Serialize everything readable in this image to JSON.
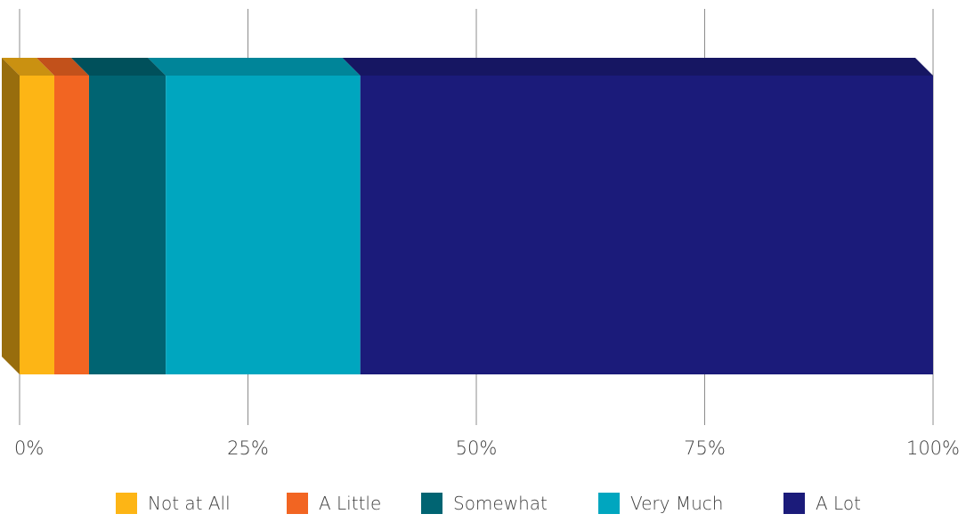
{
  "chart_data": {
    "type": "bar",
    "orientation": "horizontal",
    "stacked": true,
    "stack_mode": "percent",
    "three_d": true,
    "categories": [
      ""
    ],
    "series": [
      {
        "name": "Not at All",
        "values": [
          3.8
        ],
        "color": "#FDB515"
      },
      {
        "name": "A Little",
        "values": [
          3.8
        ],
        "color": "#F26522"
      },
      {
        "name": "Somewhat",
        "values": [
          8.4
        ],
        "color": "#006472"
      },
      {
        "name": "Very Much",
        "values": [
          21.3
        ],
        "color": "#00A6BF"
      },
      {
        "name": "A Lot",
        "values": [
          62.7
        ],
        "color": "#1B1B7A"
      }
    ],
    "xlim": [
      0,
      100
    ],
    "xticks": [
      0,
      25,
      50,
      75,
      100
    ],
    "tick_labels": [
      "0%",
      "25%",
      "50%",
      "75%",
      "100%"
    ],
    "grid": "vertical",
    "legend_position": "bottom"
  },
  "colors": {
    "grid": "#8c8c8c",
    "tick_text": "#404040"
  }
}
